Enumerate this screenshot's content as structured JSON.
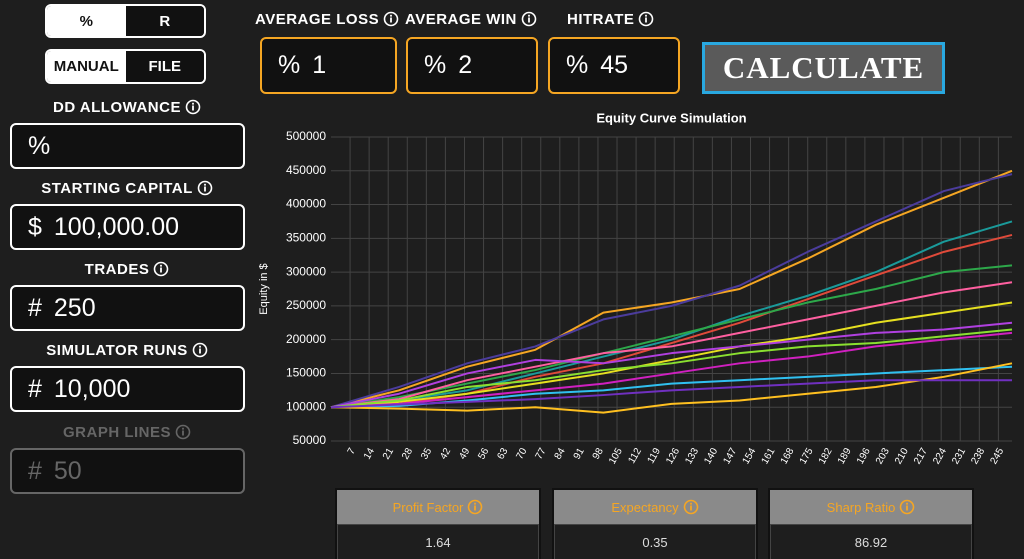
{
  "unit_toggle": {
    "options": [
      "%",
      "R"
    ]
  },
  "source_toggle": {
    "options": [
      "MANUAL",
      "FILE"
    ]
  },
  "left_fields": [
    {
      "label": "DD ALLOWANCE",
      "prefix": "%"
    },
    {
      "label": "STARTING CAPITAL",
      "prefix": "$",
      "value": "100,000.00"
    },
    {
      "label": "TRADES",
      "prefix": "#",
      "value": "250"
    },
    {
      "label": "SIMULATOR RUNS",
      "prefix": "#",
      "value": "10,000"
    },
    {
      "label": "GRAPH LINES",
      "prefix": "#",
      "value": "50"
    }
  ],
  "top_fields": [
    {
      "label": "AVERAGE LOSS",
      "prefix": "%",
      "value": "1"
    },
    {
      "label": "AVERAGE WIN",
      "prefix": "%",
      "value": "2"
    },
    {
      "label": "HITRATE",
      "prefix": "%",
      "value": "45"
    }
  ],
  "button": "CALCULATE",
  "chart_data": {
    "type": "line",
    "title": "Equity Curve Simulation",
    "y_label": "Equity in $",
    "x": [
      0,
      25,
      50,
      75,
      100,
      125,
      150,
      175,
      200,
      225,
      250
    ],
    "xlim": [
      0,
      250
    ],
    "xticks": [
      7,
      14,
      21,
      28,
      35,
      42,
      49,
      56,
      63,
      70,
      77,
      84,
      91,
      98,
      105,
      112,
      119,
      126,
      133,
      140,
      147,
      154,
      161,
      168,
      175,
      182,
      189,
      196,
      203,
      210,
      217,
      224,
      231,
      238,
      245
    ],
    "ylim": [
      50000,
      500000
    ],
    "yticks": [
      50000,
      100000,
      150000,
      200000,
      250000,
      300000,
      350000,
      400000,
      450000,
      500000
    ],
    "grid": true,
    "series": [
      {
        "color": "#f5a623",
        "values": [
          100000,
          125000,
          160000,
          185000,
          240000,
          255000,
          275000,
          320000,
          370000,
          410000,
          450000
        ]
      },
      {
        "color": "#4b3c9c",
        "values": [
          100000,
          130000,
          165000,
          190000,
          230000,
          250000,
          280000,
          330000,
          375000,
          420000,
          445000
        ]
      },
      {
        "color": "#1a9a9a",
        "values": [
          100000,
          110000,
          125000,
          150000,
          175000,
          200000,
          235000,
          265000,
          300000,
          345000,
          375000
        ]
      },
      {
        "color": "#e04a3a",
        "values": [
          100000,
          105000,
          120000,
          145000,
          165000,
          195000,
          225000,
          260000,
          295000,
          330000,
          355000
        ]
      },
      {
        "color": "#2da84a",
        "values": [
          100000,
          115000,
          135000,
          155000,
          180000,
          205000,
          230000,
          255000,
          275000,
          300000,
          310000
        ]
      },
      {
        "color": "#ff5fa0",
        "values": [
          100000,
          112000,
          140000,
          160000,
          180000,
          190000,
          210000,
          230000,
          250000,
          270000,
          285000
        ]
      },
      {
        "color": "#e6e020",
        "values": [
          100000,
          108000,
          120000,
          135000,
          150000,
          170000,
          190000,
          205000,
          225000,
          240000,
          255000
        ]
      },
      {
        "color": "#b040e0",
        "values": [
          100000,
          120000,
          150000,
          170000,
          165000,
          180000,
          190000,
          200000,
          210000,
          215000,
          225000
        ]
      },
      {
        "color": "#d020c0",
        "values": [
          100000,
          105000,
          115000,
          125000,
          135000,
          150000,
          165000,
          175000,
          190000,
          200000,
          210000
        ]
      },
      {
        "color": "#8ae030",
        "values": [
          100000,
          110000,
          130000,
          140000,
          155000,
          165000,
          180000,
          190000,
          195000,
          205000,
          215000
        ]
      },
      {
        "color": "#30c0f0",
        "values": [
          100000,
          102000,
          110000,
          120000,
          125000,
          135000,
          140000,
          145000,
          150000,
          155000,
          160000
        ]
      },
      {
        "color": "#ffc020",
        "values": [
          100000,
          98000,
          95000,
          100000,
          92000,
          105000,
          110000,
          120000,
          130000,
          145000,
          165000
        ]
      },
      {
        "color": "#7030c0",
        "values": [
          100000,
          104000,
          108000,
          112000,
          118000,
          125000,
          130000,
          135000,
          140000,
          140000,
          140000
        ]
      }
    ]
  },
  "metrics": [
    {
      "label": "Profit Factor",
      "value": 1.64
    },
    {
      "label": "Expectancy",
      "value": 0.35
    },
    {
      "label": "Sharp Ratio",
      "value": 86.92
    }
  ]
}
